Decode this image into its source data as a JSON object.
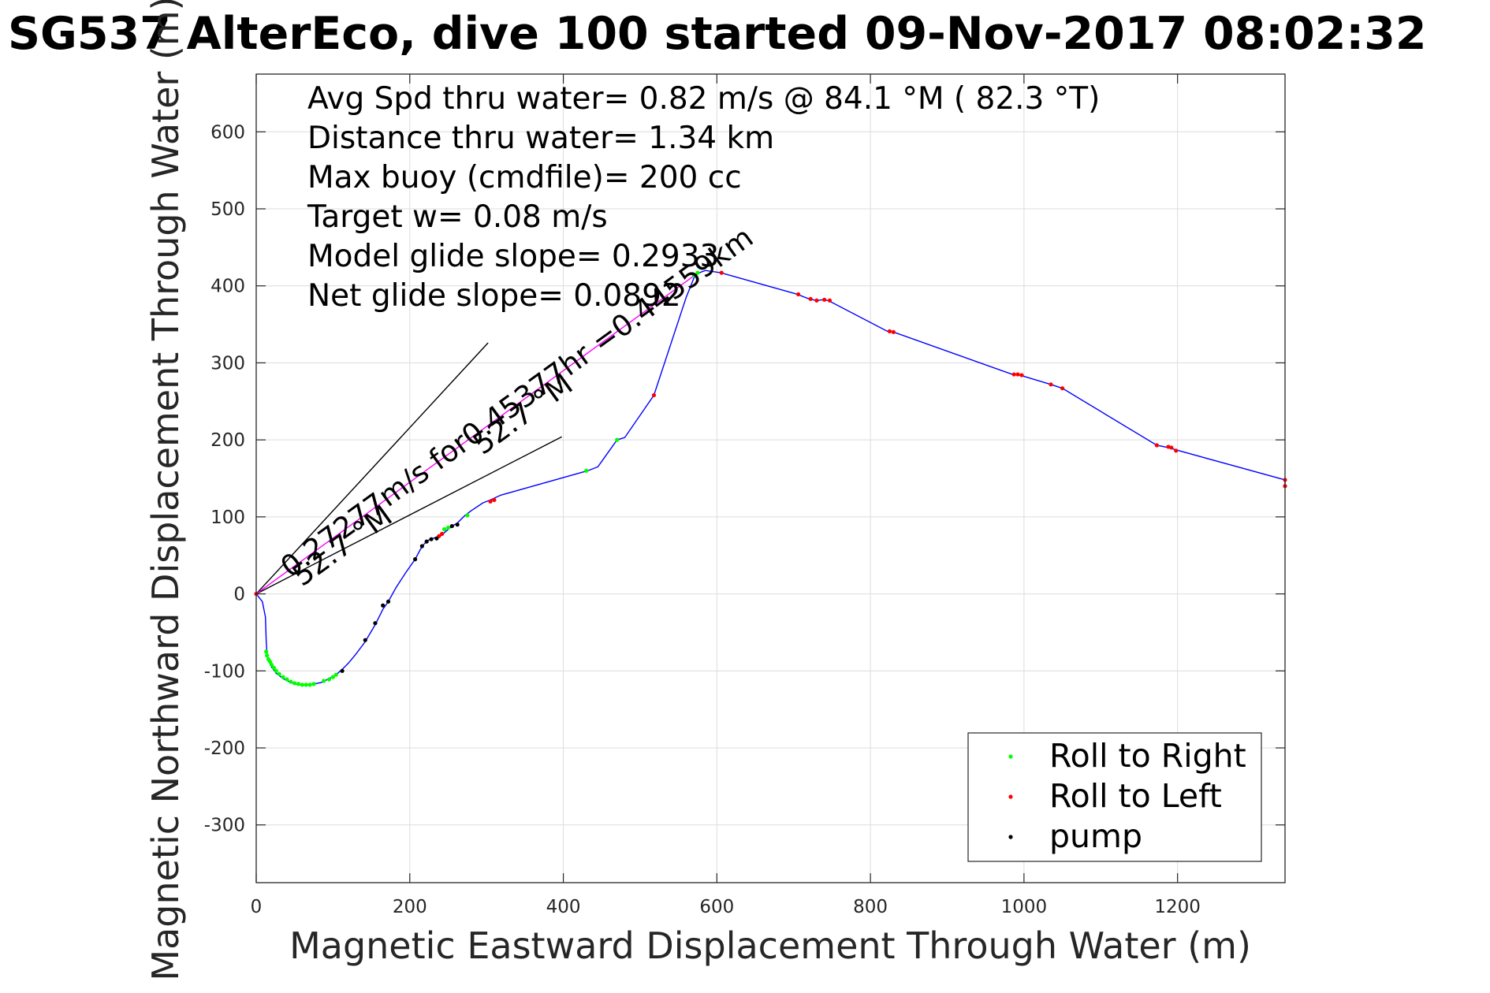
{
  "chart_data": {
    "type": "scatter",
    "title": "SG537 AlterEco, dive 100 started 09-Nov-2017 08:02:32",
    "xlabel": "Magnetic Eastward Displacement Through Water (m)",
    "ylabel": "Magnetic Northward Displacement Through Water (m)",
    "xlim": [
      0,
      1340
    ],
    "ylim": [
      -375,
      675
    ],
    "xticks": [
      0,
      200,
      400,
      600,
      800,
      1000,
      1200
    ],
    "yticks": [
      -300,
      -200,
      -100,
      0,
      100,
      200,
      300,
      400,
      500,
      600
    ],
    "grid": true,
    "legend_position": "bottom-right",
    "annotations": [
      "Avg Spd thru water=  0.82 m/s @  84.1 °M ( 82.3 °T)",
      "Distance thru water=  1.34 km",
      "Max buoy (cmdfile)= 200 cc",
      "Target w= 0.08 m/s",
      "Model glide slope= 0.2933",
      "Net glide slope= 0.0892"
    ],
    "rotated_labels": {
      "speed": "0.27277m/s for0.45377hr =0.44559km",
      "heading_outer": "52.7 °M",
      "heading_inner": "52.7 °M"
    },
    "series": [
      {
        "name": "track",
        "color": "#0000ff",
        "x": [
          0,
          8,
          12,
          13,
          14,
          16,
          20,
          26,
          35,
          45,
          55,
          65,
          75,
          85,
          95,
          104,
          112,
          120,
          130,
          142,
          155,
          165,
          172,
          182,
          195,
          207,
          214,
          218,
          223,
          230,
          240,
          248,
          255,
          262,
          272,
          280,
          295,
          305,
          318,
          432,
          445,
          470,
          480,
          518,
          560,
          572,
          585,
          605,
          705,
          720,
          730,
          738,
          745,
          822,
          830,
          985,
          995,
          1035,
          1050,
          1173,
          1188,
          1198,
          1340,
          1340
        ],
        "y": [
          0,
          -10,
          -30,
          -60,
          -78,
          -85,
          -95,
          -103,
          -110,
          -115,
          -118,
          -118,
          -117,
          -115,
          -110,
          -105,
          -98,
          -90,
          -78,
          -62,
          -40,
          -20,
          -10,
          8,
          28,
          45,
          58,
          64,
          69,
          72,
          75,
          82,
          88,
          92,
          102,
          108,
          118,
          122,
          128,
          160,
          165,
          200,
          203,
          258,
          385,
          415,
          420,
          417,
          389,
          383,
          381,
          382,
          381,
          341,
          340,
          285,
          284,
          272,
          267,
          193,
          190,
          187,
          148,
          140
        ]
      },
      {
        "name": "Roll to Right",
        "color": "#00ff00",
        "x": [
          13,
          14,
          16,
          18,
          20,
          23,
          26,
          30,
          35,
          40,
          45,
          50,
          55,
          60,
          65,
          70,
          75,
          88,
          95,
          100,
          104,
          245,
          250,
          275,
          430,
          470,
          570,
          575
        ],
        "y": [
          -75,
          -80,
          -85,
          -88,
          -92,
          -96,
          -100,
          -104,
          -108,
          -111,
          -114,
          -116,
          -117,
          -118,
          -118,
          -118,
          -117,
          -113,
          -111,
          -108,
          -105,
          84,
          86,
          102,
          160,
          200,
          414,
          417
        ]
      },
      {
        "name": "Roll to Left",
        "color": "#ff0000",
        "x": [
          0,
          238,
          242,
          305,
          310,
          518,
          606,
          706,
          722,
          730,
          740,
          747,
          825,
          830,
          987,
          992,
          997,
          1035,
          1050,
          1173,
          1188,
          1192,
          1198,
          1340,
          1340
        ],
        "y": [
          0,
          75,
          78,
          120,
          122,
          258,
          417,
          389,
          383,
          381,
          382,
          381,
          341,
          340,
          285,
          285,
          284,
          272,
          267,
          193,
          191,
          190,
          186,
          148,
          140
        ],
        "secondary_color": "#0000ff"
      },
      {
        "name": "pump",
        "color": "#000000",
        "x": [
          112,
          142,
          155,
          165,
          172,
          207,
          216,
          222,
          228,
          235,
          255,
          262
        ],
        "y": [
          -100,
          -60,
          -38,
          -15,
          -10,
          45,
          62,
          68,
          71,
          72,
          88,
          90
        ]
      }
    ],
    "guide_lines": [
      {
        "x": [
          0,
          302
        ],
        "y": [
          0,
          326
        ]
      },
      {
        "x": [
          0,
          398
        ],
        "y": [
          0,
          204
        ]
      },
      {
        "x": [
          0,
          570
        ],
        "y": [
          0,
          413
        ]
      }
    ]
  }
}
